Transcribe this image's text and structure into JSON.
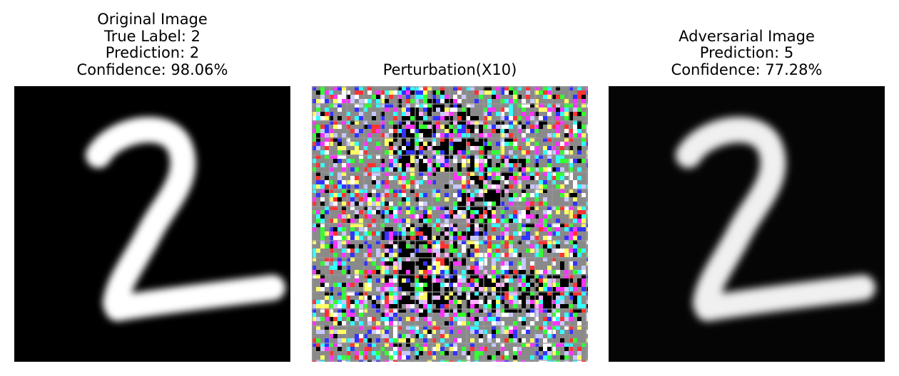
{
  "panels": {
    "original": {
      "title_lines": [
        "Original Image",
        "True Label: 2",
        "Prediction: 2",
        "Confidence: 98.06%"
      ]
    },
    "perturbation": {
      "title_lines": [
        "Perturbation(X10)"
      ]
    },
    "adversarial": {
      "title_lines": [
        "Adversarial Image",
        "Prediction: 5",
        "Confidence: 77.28%"
      ]
    }
  },
  "colors": {
    "image_background": "#000000",
    "digit_stroke": "#ffffff",
    "perturbation_base": "#8a8a8a",
    "noise_palette": [
      "#ffffff",
      "#ff33ff",
      "#33ff33",
      "#33ffff",
      "#ffff66",
      "#ff3333",
      "#3333ff",
      "#000000",
      "#c8c8ff",
      "#ffb0ff"
    ]
  }
}
